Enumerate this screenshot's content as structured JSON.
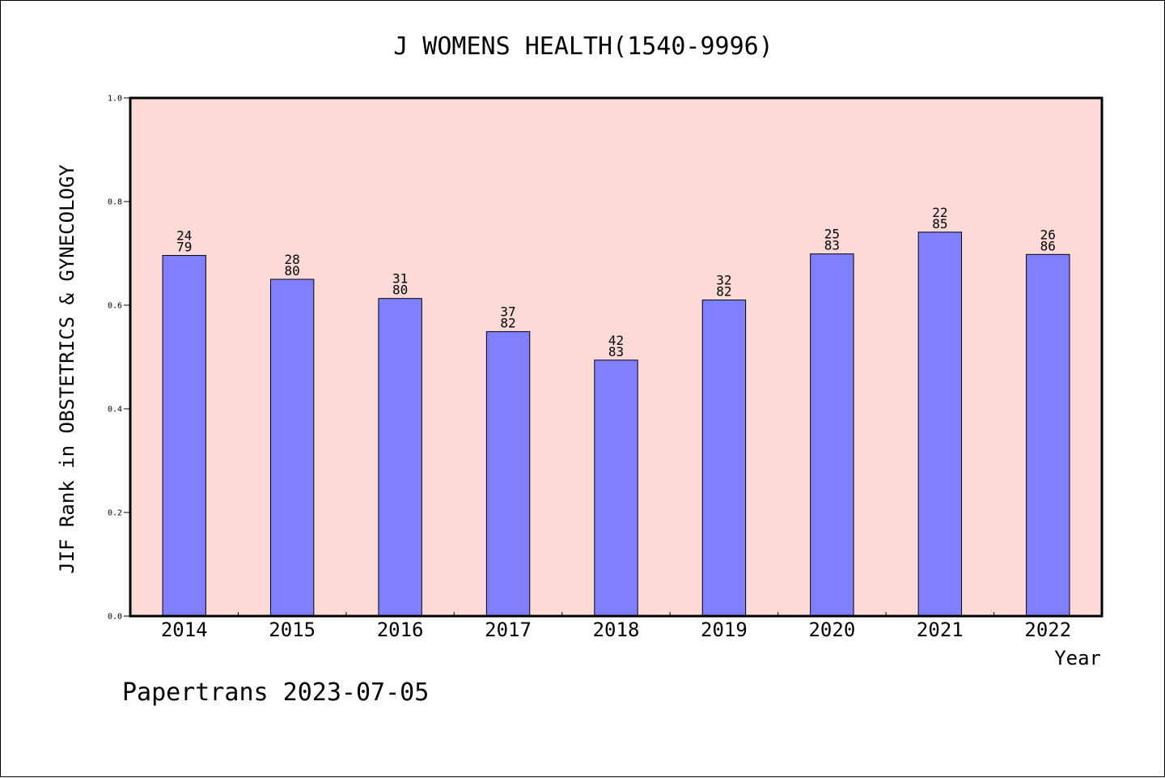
{
  "chart_data": {
    "type": "bar",
    "title": "J WOMENS HEALTH(1540-9996)",
    "xlabel": "Year",
    "ylabel": "JIF Rank in OBSTETRICS & GYNECOLOGY",
    "ylim": [
      0,
      1
    ],
    "yticks": [
      "0.0",
      "0.2",
      "0.4",
      "0.6",
      "0.8",
      "1.0"
    ],
    "categories": [
      "2014",
      "2015",
      "2016",
      "2017",
      "2018",
      "2019",
      "2020",
      "2021",
      "2022"
    ],
    "values": [
      0.696,
      0.65,
      0.613,
      0.549,
      0.494,
      0.61,
      0.699,
      0.741,
      0.698
    ],
    "rank": [
      "24",
      "28",
      "31",
      "37",
      "42",
      "32",
      "25",
      "22",
      "26"
    ],
    "total": [
      "79",
      "80",
      "80",
      "82",
      "83",
      "82",
      "83",
      "85",
      "86"
    ],
    "grid": false,
    "colors": {
      "plot_background": "#FDDAD8",
      "bar_fill": "#8080FF",
      "bar_stroke": "#000000"
    }
  },
  "footer": {
    "text": "Papertrans 2023-07-05"
  }
}
